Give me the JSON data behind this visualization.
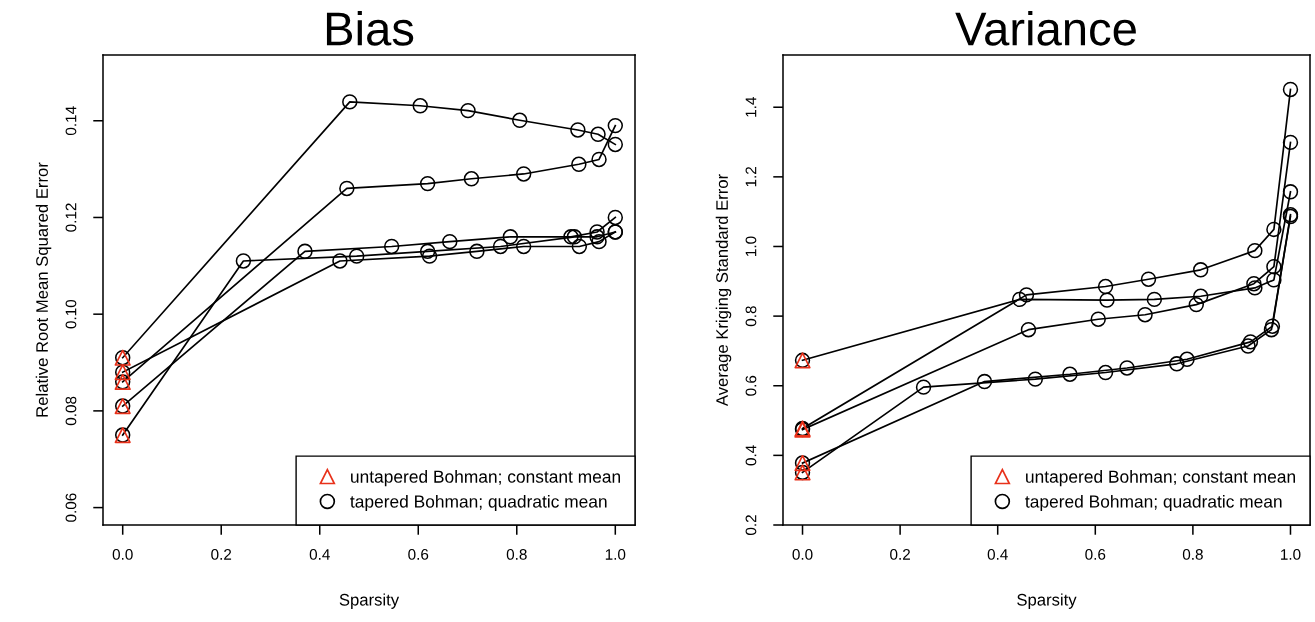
{
  "chart_data": [
    {
      "type": "line",
      "title": "Bias",
      "xlabel": "Sparsity",
      "ylabel": "Relative Root Mean Squared Error",
      "legend": "bottom right",
      "xlim": [
        -0.04,
        1.04
      ],
      "ylim": [
        0.0564,
        0.1536
      ],
      "xticks": [
        {
          "value": 0,
          "label": "0.0"
        },
        {
          "value": 0.2,
          "label": "0.2"
        },
        {
          "value": 0.4,
          "label": "0.4"
        },
        {
          "value": 0.6,
          "label": "0.6"
        },
        {
          "value": 0.8,
          "label": "0.8"
        },
        {
          "value": 1,
          "label": "1.0"
        }
      ],
      "yticks": [
        0.06,
        0.08,
        {
          "value": 0.1,
          "label": "0.10"
        },
        0.12,
        0.14
      ],
      "series": [
        {
          "type": "scatter",
          "name": "untapered Bohman; constant mean",
          "color": "#e8311a",
          "marker": "triangle",
          "x": [
            0,
            0,
            0,
            0,
            0
          ],
          "values": [
            0.091,
            0.088,
            0.086,
            0.081,
            0.075
          ]
        },
        {
          "name": "tapered Bohman; quadratic mean",
          "color": "#000000",
          "marker": "circle",
          "line_style": "solid",
          "x": [
            0,
            0.461,
            0.604,
            0.701,
            0.806,
            0.924,
            0.965,
            1.0
          ],
          "values": [
            0.091,
            0.1439,
            0.1431,
            0.1421,
            0.1401,
            0.1381,
            0.1372,
            0.1351
          ]
        },
        {
          "color": "#000000",
          "marker": "circle",
          "line_style": "solid",
          "x": [
            0,
            0.455,
            0.619,
            0.708,
            0.814,
            0.926,
            0.967,
            1.0
          ],
          "values": [
            0.086,
            0.126,
            0.127,
            0.128,
            0.129,
            0.131,
            0.132,
            0.139
          ]
        },
        {
          "color": "#000000",
          "marker": "circle",
          "line_style": "solid",
          "x": [
            0,
            0.37,
            0.546,
            0.664,
            0.787,
            0.91,
            0.963,
            1.0
          ],
          "values": [
            0.081,
            0.113,
            0.114,
            0.115,
            0.116,
            0.116,
            0.117,
            0.12
          ]
        },
        {
          "color": "#000000",
          "marker": "circle",
          "line_style": "solid",
          "x": [
            0,
            0.441,
            0.623,
            0.719,
            0.814,
            0.927,
            0.967,
            1.0
          ],
          "values": [
            0.088,
            0.111,
            0.112,
            0.113,
            0.114,
            0.114,
            0.115,
            0.117
          ]
        },
        {
          "color": "#000000",
          "marker": "circle",
          "line_style": "solid",
          "x": [
            0,
            0.245,
            0.475,
            0.619,
            0.767,
            0.917,
            0.963,
            1.0
          ],
          "values": [
            0.075,
            0.111,
            0.112,
            0.113,
            0.114,
            0.116,
            0.116,
            0.117
          ]
        }
      ]
    },
    {
      "type": "line",
      "title": "Variance",
      "xlabel": "Sparsity",
      "ylabel": "Average Kriging Standard Error",
      "legend": "bottom right",
      "xlim": [
        -0.04,
        1.04
      ],
      "ylim": [
        0.2,
        1.55
      ],
      "xticks": [
        {
          "value": 0,
          "label": "0.0"
        },
        {
          "value": 0.2,
          "label": "0.2"
        },
        {
          "value": 0.4,
          "label": "0.4"
        },
        {
          "value": 0.6,
          "label": "0.6"
        },
        {
          "value": 0.8,
          "label": "0.8"
        },
        {
          "value": 1,
          "label": "1.0"
        }
      ],
      "yticks": [
        0.2,
        0.4,
        0.6,
        0.8,
        {
          "value": 1,
          "label": "1.0"
        },
        1.2,
        1.4
      ],
      "series": [
        {
          "type": "scatter",
          "name": "untapered Bohman; constant mean",
          "color": "#e8311a",
          "marker": "triangle",
          "x": [
            0,
            0,
            0,
            0,
            0
          ],
          "values": [
            0.673,
            0.477,
            0.474,
            0.378,
            0.351
          ]
        },
        {
          "name": "tapered Bohman; quadratic mean",
          "color": "#000000",
          "marker": "circle",
          "line_style": "solid",
          "x": [
            0,
            0.445,
            0.624,
            0.721,
            0.816,
            0.927,
            0.966,
            1.0
          ],
          "values": [
            0.673,
            0.848,
            0.846,
            0.848,
            0.857,
            0.881,
            0.904,
            1.157
          ]
        },
        {
          "color": "#000000",
          "marker": "circle",
          "line_style": "solid",
          "x": [
            0,
            0.459,
            0.621,
            0.709,
            0.816,
            0.927,
            0.966,
            1.0
          ],
          "values": [
            0.477,
            0.861,
            0.885,
            0.906,
            0.933,
            0.988,
            1.049,
            1.451
          ]
        },
        {
          "color": "#000000",
          "marker": "circle",
          "line_style": "solid",
          "x": [
            0,
            0.463,
            0.606,
            0.702,
            0.807,
            0.925,
            0.966,
            1.0
          ],
          "values": [
            0.474,
            0.761,
            0.791,
            0.804,
            0.833,
            0.893,
            0.942,
            1.299
          ]
        },
        {
          "color": "#000000",
          "marker": "circle",
          "line_style": "solid",
          "x": [
            0,
            0.373,
            0.548,
            0.665,
            0.788,
            0.918,
            0.963,
            1.0
          ],
          "values": [
            0.378,
            0.612,
            0.633,
            0.651,
            0.676,
            0.726,
            0.771,
            1.091
          ]
        },
        {
          "color": "#000000",
          "marker": "circle",
          "line_style": "solid",
          "x": [
            0,
            0.248,
            0.477,
            0.621,
            0.767,
            0.913,
            0.961,
            1.0
          ],
          "values": [
            0.351,
            0.596,
            0.619,
            0.638,
            0.663,
            0.714,
            0.761,
            1.086
          ]
        }
      ]
    }
  ]
}
